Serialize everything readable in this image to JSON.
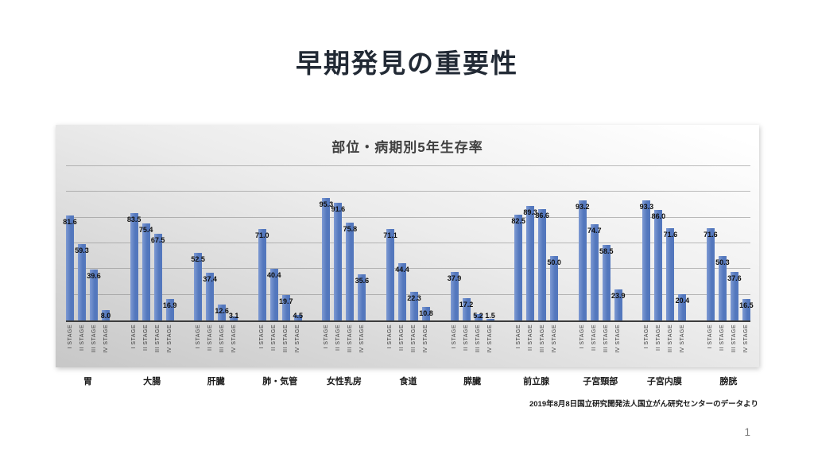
{
  "slide": {
    "title": "早期発見の重要性",
    "title_color": "#222A35",
    "source_note": "2019年8月8日国立研究開発法人国立がん研究センターのデータより",
    "page_number": "1"
  },
  "chart_data": {
    "type": "bar",
    "title": "部位・病期別5年生存率",
    "categories": [
      "胃",
      "大腸",
      "肝臓",
      "肺・気管",
      "女性乳房",
      "食道",
      "膵臓",
      "前立腺",
      "子宮頸部",
      "子宮内膜",
      "膀胱"
    ],
    "series": [
      {
        "name": "I STAGE",
        "values": [
          81.6,
          83.5,
          52.5,
          71.0,
          95.3,
          71.1,
          37.9,
          82.5,
          93.2,
          93.3,
          71.6
        ]
      },
      {
        "name": "II STAGE",
        "values": [
          59.3,
          75.4,
          37.4,
          40.4,
          91.6,
          44.4,
          17.2,
          89.3,
          74.7,
          86.0,
          50.3
        ]
      },
      {
        "name": "III STAGE",
        "values": [
          39.6,
          67.5,
          12.6,
          19.7,
          75.8,
          22.3,
          5.2,
          86.6,
          58.5,
          71.6,
          37.6
        ]
      },
      {
        "name": "IV STAGE",
        "values": [
          8.0,
          16.9,
          3.1,
          4.5,
          35.6,
          10.8,
          1.5,
          50.0,
          23.9,
          20.4,
          16.5
        ]
      }
    ],
    "xlabel": "",
    "ylabel": "",
    "ylim": [
      0,
      120
    ],
    "gridline_interval": 20,
    "grid": true,
    "legend": "none",
    "y_tick_labels_visible": false,
    "data_labels": true,
    "data_label_decimals": 1,
    "bar_color": "#5B82C5",
    "bar_gradient": [
      "#7E9AD3",
      "#5377BD"
    ]
  }
}
